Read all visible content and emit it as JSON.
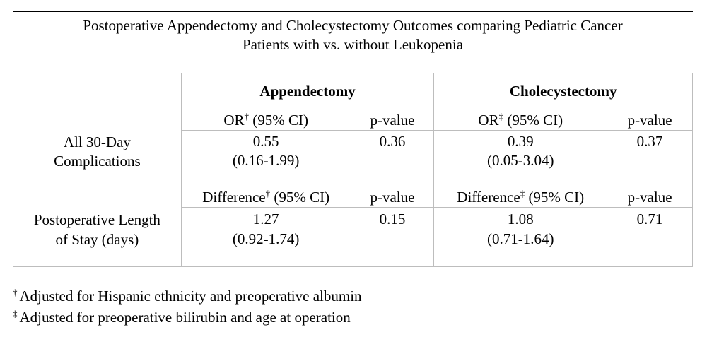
{
  "title": {
    "line1": "Postoperative Appendectomy and Cholecystectomy Outcomes comparing Pediatric Cancer",
    "line2": "Patients with vs. without Leukopenia"
  },
  "table": {
    "groups": [
      "Appendectomy",
      "Cholecystectomy"
    ],
    "rows": [
      {
        "label_lines": [
          "All 30-Day",
          "Complications"
        ],
        "measure_label": "OR",
        "measure_suffix": " (95% CI)",
        "pvalue_label": "p-value",
        "appendectomy": {
          "marker": "†",
          "estimate": "0.55",
          "ci": "(0.16-1.99)",
          "p": "0.36"
        },
        "cholecystectomy": {
          "marker": "‡",
          "estimate": "0.39",
          "ci": "(0.05-3.04)",
          "p": "0.37"
        }
      },
      {
        "label_lines": [
          "Postoperative Length",
          "of Stay (days)"
        ],
        "measure_label": "Difference",
        "measure_suffix": " (95% CI)",
        "pvalue_label": "p-value",
        "appendectomy": {
          "marker": "†",
          "estimate": "1.27",
          "ci": "(0.92-1.74)",
          "p": "0.15"
        },
        "cholecystectomy": {
          "marker": "‡",
          "estimate": "1.08",
          "ci": "(0.71-1.64)",
          "p": "0.71"
        }
      }
    ]
  },
  "footnotes": [
    {
      "marker": "†",
      "text": "Adjusted for Hispanic ethnicity and preoperative albumin"
    },
    {
      "marker": "‡",
      "text": "Adjusted for preoperative bilirubin and age at operation"
    }
  ]
}
